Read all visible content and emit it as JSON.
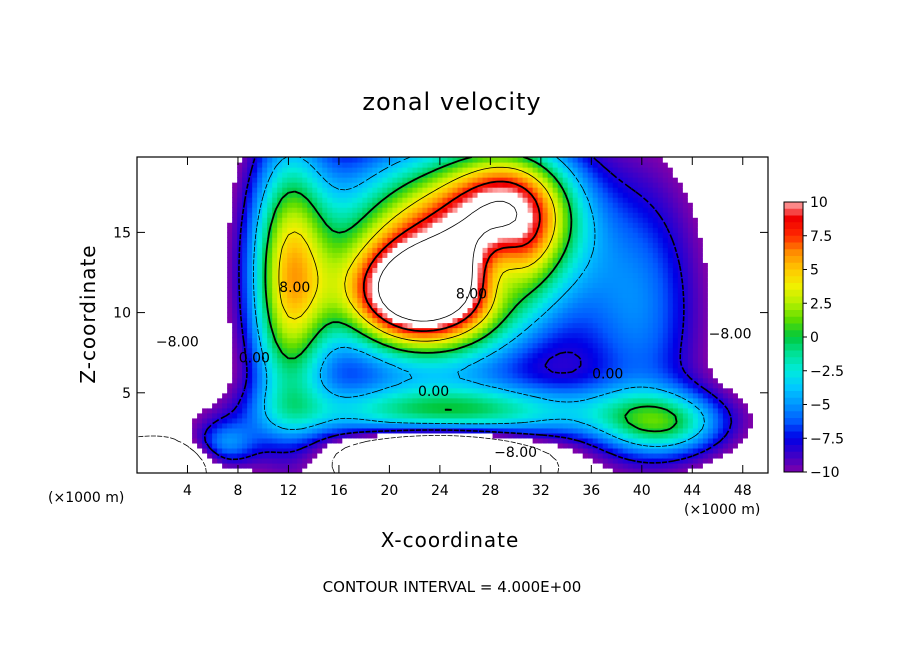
{
  "chart_data": {
    "type": "heatmap",
    "title": "zonal velocity",
    "xlabel": "X-coordinate",
    "ylabel": "Z-coordinate",
    "x_unit_left": "(×1000 m)",
    "x_unit_right": "(×1000 m)",
    "footer": "CONTOUR INTERVAL = 4.000E+00",
    "xlim": [
      0,
      50
    ],
    "ylim": [
      0,
      19.7
    ],
    "xticks": [
      {
        "value": 4,
        "label": "4"
      },
      {
        "value": 8,
        "label": "8"
      },
      {
        "value": 12,
        "label": "12"
      },
      {
        "value": 16,
        "label": "16"
      },
      {
        "value": 20,
        "label": "20"
      },
      {
        "value": 24,
        "label": "24"
      },
      {
        "value": 28,
        "label": "28"
      },
      {
        "value": 32,
        "label": "32"
      },
      {
        "value": 36,
        "label": "36"
      },
      {
        "value": 40,
        "label": "40"
      },
      {
        "value": 44,
        "label": "44"
      },
      {
        "value": 48,
        "label": "48"
      }
    ],
    "yticks": [
      {
        "value": 5,
        "label": "5"
      },
      {
        "value": 10,
        "label": "10"
      },
      {
        "value": 15,
        "label": "15"
      }
    ],
    "colorbar": {
      "min": -10,
      "max": 10,
      "labels": [
        {
          "value": 10,
          "label": "10"
        },
        {
          "value": 7.5,
          "label": "7.5"
        },
        {
          "value": 5,
          "label": "5"
        },
        {
          "value": 2.5,
          "label": "2.5"
        },
        {
          "value": 0,
          "label": "0"
        },
        {
          "value": -2.5,
          "label": "−2.5"
        },
        {
          "value": -5,
          "label": "−5"
        },
        {
          "value": -7.5,
          "label": "−7.5"
        },
        {
          "value": -10,
          "label": "−10"
        }
      ]
    },
    "contour_labels": [
      {
        "x": 12.5,
        "z": 11.6,
        "label": "8.00"
      },
      {
        "x": 26.5,
        "z": 11.2,
        "label": "8.00"
      },
      {
        "x": 9.3,
        "z": 7.2,
        "label": "0.00"
      },
      {
        "x": 23.5,
        "z": 5.1,
        "label": "0.00"
      },
      {
        "x": 37.3,
        "z": 6.2,
        "label": "0.00"
      },
      {
        "x": 3.2,
        "z": 8.2,
        "label": "−8.00"
      },
      {
        "x": 30.0,
        "z": 1.3,
        "label": "−8.00"
      },
      {
        "x": 47.0,
        "z": 8.7,
        "label": "−8.00"
      }
    ]
  }
}
